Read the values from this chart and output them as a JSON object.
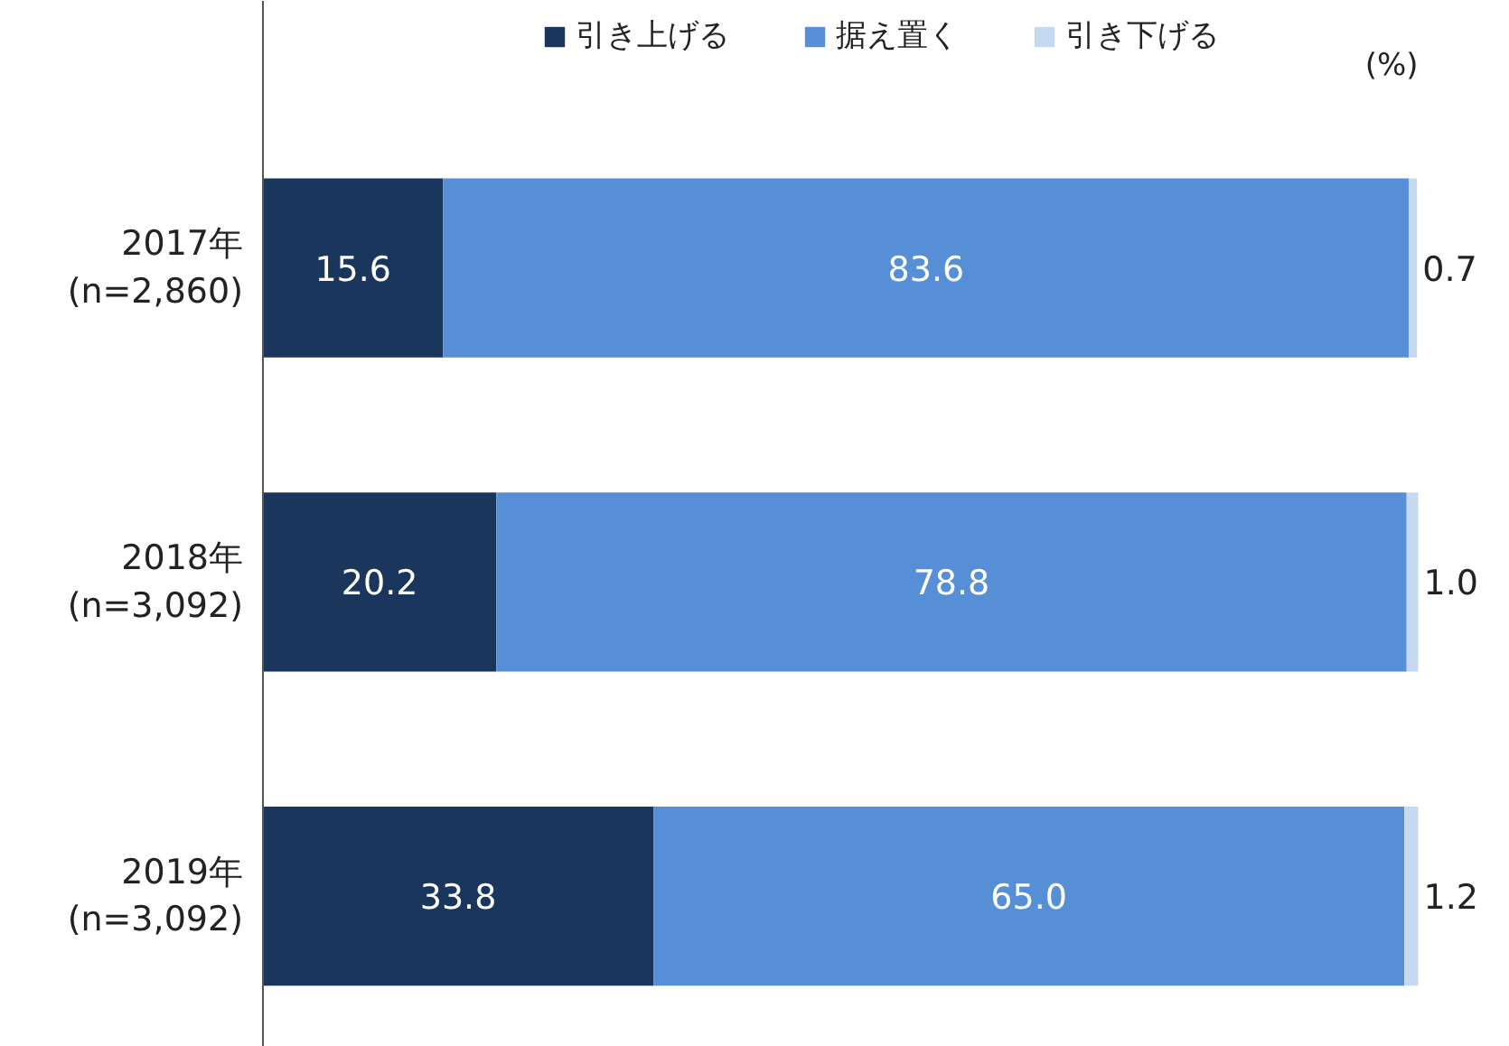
{
  "chart_data": {
    "type": "bar",
    "orientation": "horizontal",
    "stacked": true,
    "legend": "top",
    "grid": false,
    "categories": [
      "2017年\n(n=2,860)",
      "2018年\n(n=3,092)",
      "2019年\n(n=3,092)"
    ],
    "series": [
      {
        "name": "引き上げる",
        "color": "#1b365d",
        "values": [
          15.6,
          20.2,
          33.8
        ],
        "value_labels": [
          "15.6",
          "20.2",
          "33.8"
        ]
      },
      {
        "name": "据え置く",
        "color": "#578fd6",
        "values": [
          83.6,
          78.8,
          65.0
        ],
        "value_labels": [
          "83.6",
          "78.8",
          "65.0"
        ]
      },
      {
        "name": "引き下げる",
        "color": "#c5d9f1",
        "values": [
          0.7,
          1.0,
          1.2
        ],
        "value_labels": [
          "0.7",
          "1.0",
          "1.2"
        ]
      }
    ],
    "annotations": [
      "(%)"
    ]
  }
}
